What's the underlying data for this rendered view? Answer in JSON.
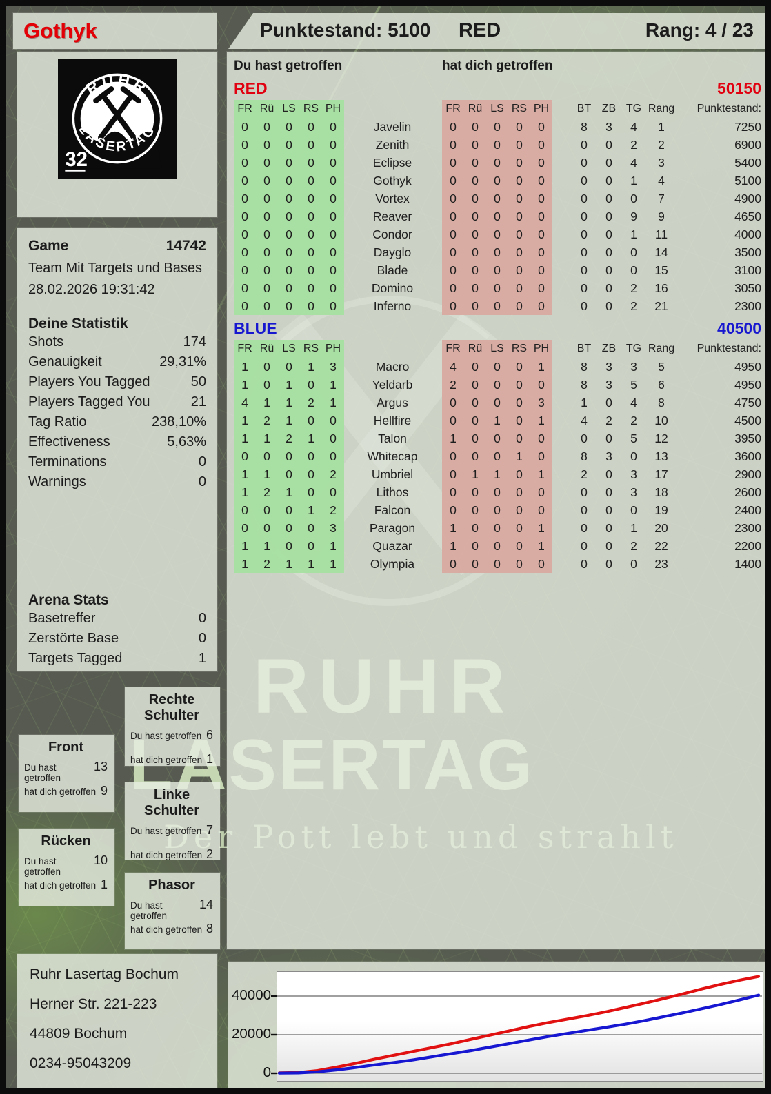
{
  "header": {
    "player": "Gothyk",
    "score_label": "Punktestand: 5100",
    "team": "RED",
    "rank_label": "Rang: 4 / 23"
  },
  "logo": {
    "arc_top": "RUHR",
    "arc_bottom": "LASERTAG",
    "badge": "32"
  },
  "game": {
    "label": "Game",
    "id": "14742",
    "mode": "Team Mit Targets und Bases",
    "datetime": "28.02.2026 19:31:42"
  },
  "stats": {
    "title": "Deine Statistik",
    "rows": [
      {
        "label": "Shots",
        "value": "174"
      },
      {
        "label": "Genauigkeit",
        "value": "29,31%"
      },
      {
        "label": "Players You Tagged",
        "value": "50"
      },
      {
        "label": "Players Tagged You",
        "value": "21"
      },
      {
        "label": "Tag Ratio",
        "value": "238,10%"
      },
      {
        "label": "Effectiveness",
        "value": "5,63%"
      },
      {
        "label": "Terminations",
        "value": "0"
      },
      {
        "label": "Warnings",
        "value": "0"
      }
    ]
  },
  "arena": {
    "title": "Arena Stats",
    "rows": [
      {
        "label": "Basetreffer",
        "value": "0"
      },
      {
        "label": "Zerstörte Base",
        "value": "0"
      },
      {
        "label": "Targets Tagged",
        "value": "1"
      }
    ]
  },
  "hit_zones": {
    "hit_label": "Du hast getroffen",
    "got_label": "hat dich getroffen",
    "panels": [
      {
        "key": "front",
        "title": "Front",
        "hit": "13",
        "got": "9"
      },
      {
        "key": "ruecken",
        "title": "Rücken",
        "hit": "10",
        "got": "1"
      },
      {
        "key": "rechte",
        "title": "Rechte Schulter",
        "hit": "6",
        "got": "1"
      },
      {
        "key": "linke",
        "title": "Linke Schulter",
        "hit": "7",
        "got": "2"
      },
      {
        "key": "phasor",
        "title": "Phasor",
        "hit": "14",
        "got": "8"
      }
    ]
  },
  "scoreboard": {
    "hit_header": "Du hast getroffen",
    "got_header": "hat dich getroffen",
    "columns": [
      "FR",
      "Rü",
      "LS",
      "RS",
      "PH"
    ],
    "extra_columns": [
      "BT",
      "ZB",
      "TG",
      "Rang",
      "Punktestand:"
    ],
    "teams": [
      {
        "name": "RED",
        "total": "50150",
        "color": "#e1000f",
        "rows": [
          {
            "player": "Javelin",
            "hit": [
              0,
              0,
              0,
              0,
              0
            ],
            "got": [
              0,
              0,
              0,
              0,
              0
            ],
            "bt": 8,
            "zb": 3,
            "tg": 4,
            "rang": 1,
            "score": 7250
          },
          {
            "player": "Zenith",
            "hit": [
              0,
              0,
              0,
              0,
              0
            ],
            "got": [
              0,
              0,
              0,
              0,
              0
            ],
            "bt": 0,
            "zb": 0,
            "tg": 2,
            "rang": 2,
            "score": 6900
          },
          {
            "player": "Eclipse",
            "hit": [
              0,
              0,
              0,
              0,
              0
            ],
            "got": [
              0,
              0,
              0,
              0,
              0
            ],
            "bt": 0,
            "zb": 0,
            "tg": 4,
            "rang": 3,
            "score": 5400
          },
          {
            "player": "Gothyk",
            "hit": [
              0,
              0,
              0,
              0,
              0
            ],
            "got": [
              0,
              0,
              0,
              0,
              0
            ],
            "bt": 0,
            "zb": 0,
            "tg": 1,
            "rang": 4,
            "score": 5100
          },
          {
            "player": "Vortex",
            "hit": [
              0,
              0,
              0,
              0,
              0
            ],
            "got": [
              0,
              0,
              0,
              0,
              0
            ],
            "bt": 0,
            "zb": 0,
            "tg": 0,
            "rang": 7,
            "score": 4900
          },
          {
            "player": "Reaver",
            "hit": [
              0,
              0,
              0,
              0,
              0
            ],
            "got": [
              0,
              0,
              0,
              0,
              0
            ],
            "bt": 0,
            "zb": 0,
            "tg": 9,
            "rang": 9,
            "score": 4650
          },
          {
            "player": "Condor",
            "hit": [
              0,
              0,
              0,
              0,
              0
            ],
            "got": [
              0,
              0,
              0,
              0,
              0
            ],
            "bt": 0,
            "zb": 0,
            "tg": 1,
            "rang": 11,
            "score": 4000
          },
          {
            "player": "Dayglo",
            "hit": [
              0,
              0,
              0,
              0,
              0
            ],
            "got": [
              0,
              0,
              0,
              0,
              0
            ],
            "bt": 0,
            "zb": 0,
            "tg": 0,
            "rang": 14,
            "score": 3500
          },
          {
            "player": "Blade",
            "hit": [
              0,
              0,
              0,
              0,
              0
            ],
            "got": [
              0,
              0,
              0,
              0,
              0
            ],
            "bt": 0,
            "zb": 0,
            "tg": 0,
            "rang": 15,
            "score": 3100
          },
          {
            "player": "Domino",
            "hit": [
              0,
              0,
              0,
              0,
              0
            ],
            "got": [
              0,
              0,
              0,
              0,
              0
            ],
            "bt": 0,
            "zb": 0,
            "tg": 2,
            "rang": 16,
            "score": 3050
          },
          {
            "player": "Inferno",
            "hit": [
              0,
              0,
              0,
              0,
              0
            ],
            "got": [
              0,
              0,
              0,
              0,
              0
            ],
            "bt": 0,
            "zb": 0,
            "tg": 2,
            "rang": 21,
            "score": 2300
          }
        ]
      },
      {
        "name": "BLUE",
        "total": "40500",
        "color": "#1717cf",
        "rows": [
          {
            "player": "Macro",
            "hit": [
              1,
              0,
              0,
              1,
              3
            ],
            "got": [
              4,
              0,
              0,
              0,
              1
            ],
            "bt": 8,
            "zb": 3,
            "tg": 3,
            "rang": 5,
            "score": 4950
          },
          {
            "player": "Yeldarb",
            "hit": [
              1,
              0,
              1,
              0,
              1
            ],
            "got": [
              2,
              0,
              0,
              0,
              0
            ],
            "bt": 8,
            "zb": 3,
            "tg": 5,
            "rang": 6,
            "score": 4950
          },
          {
            "player": "Argus",
            "hit": [
              4,
              1,
              1,
              2,
              1
            ],
            "got": [
              0,
              0,
              0,
              0,
              3
            ],
            "bt": 1,
            "zb": 0,
            "tg": 4,
            "rang": 8,
            "score": 4750
          },
          {
            "player": "Hellfire",
            "hit": [
              1,
              2,
              1,
              0,
              0
            ],
            "got": [
              0,
              0,
              1,
              0,
              1
            ],
            "bt": 4,
            "zb": 2,
            "tg": 2,
            "rang": 10,
            "score": 4500
          },
          {
            "player": "Talon",
            "hit": [
              1,
              1,
              2,
              1,
              0
            ],
            "got": [
              1,
              0,
              0,
              0,
              0
            ],
            "bt": 0,
            "zb": 0,
            "tg": 5,
            "rang": 12,
            "score": 3950
          },
          {
            "player": "Whitecap",
            "hit": [
              0,
              0,
              0,
              0,
              0
            ],
            "got": [
              0,
              0,
              0,
              1,
              0
            ],
            "bt": 8,
            "zb": 3,
            "tg": 0,
            "rang": 13,
            "score": 3600
          },
          {
            "player": "Umbriel",
            "hit": [
              1,
              1,
              0,
              0,
              2
            ],
            "got": [
              0,
              1,
              1,
              0,
              1
            ],
            "bt": 2,
            "zb": 0,
            "tg": 3,
            "rang": 17,
            "score": 2900
          },
          {
            "player": "Lithos",
            "hit": [
              1,
              2,
              1,
              0,
              0
            ],
            "got": [
              0,
              0,
              0,
              0,
              0
            ],
            "bt": 0,
            "zb": 0,
            "tg": 3,
            "rang": 18,
            "score": 2600
          },
          {
            "player": "Falcon",
            "hit": [
              0,
              0,
              0,
              1,
              2
            ],
            "got": [
              0,
              0,
              0,
              0,
              0
            ],
            "bt": 0,
            "zb": 0,
            "tg": 0,
            "rang": 19,
            "score": 2400
          },
          {
            "player": "Paragon",
            "hit": [
              0,
              0,
              0,
              0,
              3
            ],
            "got": [
              1,
              0,
              0,
              0,
              1
            ],
            "bt": 0,
            "zb": 0,
            "tg": 1,
            "rang": 20,
            "score": 2300
          },
          {
            "player": "Quazar",
            "hit": [
              1,
              1,
              0,
              0,
              1
            ],
            "got": [
              1,
              0,
              0,
              0,
              1
            ],
            "bt": 0,
            "zb": 0,
            "tg": 2,
            "rang": 22,
            "score": 2200
          },
          {
            "player": "Olympia",
            "hit": [
              1,
              2,
              1,
              1,
              1
            ],
            "got": [
              0,
              0,
              0,
              0,
              0
            ],
            "bt": 0,
            "zb": 0,
            "tg": 0,
            "rang": 23,
            "score": 1400
          }
        ]
      }
    ]
  },
  "watermark": {
    "line1": "RUHR",
    "line2": "LASERTAG",
    "tagline": "Der Pott lebt und strahlt"
  },
  "address": {
    "lines": [
      "Ruhr Lasertag Bochum",
      "Herner Str. 221-223",
      "44809 Bochum",
      "0234-95043209"
    ]
  },
  "chart_data": {
    "type": "line",
    "title": "",
    "xlabel": "",
    "ylabel": "",
    "yticks": [
      0,
      20000,
      40000
    ],
    "ylim": [
      0,
      52500
    ],
    "grid": true,
    "legend": "none",
    "series": [
      {
        "name": "RED",
        "color": "#e11111",
        "values": [
          200,
          400,
          1400,
          3200,
          5200,
          7400,
          9400,
          11400,
          13400,
          15400,
          17600,
          19800,
          22000,
          24200,
          26200,
          28000,
          29800,
          31800,
          34000,
          36200,
          38600,
          41000,
          43600,
          46000,
          48200,
          50150
        ]
      },
      {
        "name": "BLUE",
        "color": "#1717d2",
        "values": [
          100,
          200,
          800,
          1800,
          3000,
          4400,
          5600,
          7000,
          8600,
          10200,
          11800,
          13600,
          15400,
          17200,
          19000,
          20600,
          22200,
          23800,
          25400,
          27200,
          29200,
          31200,
          33400,
          35600,
          38000,
          40500
        ]
      }
    ]
  }
}
